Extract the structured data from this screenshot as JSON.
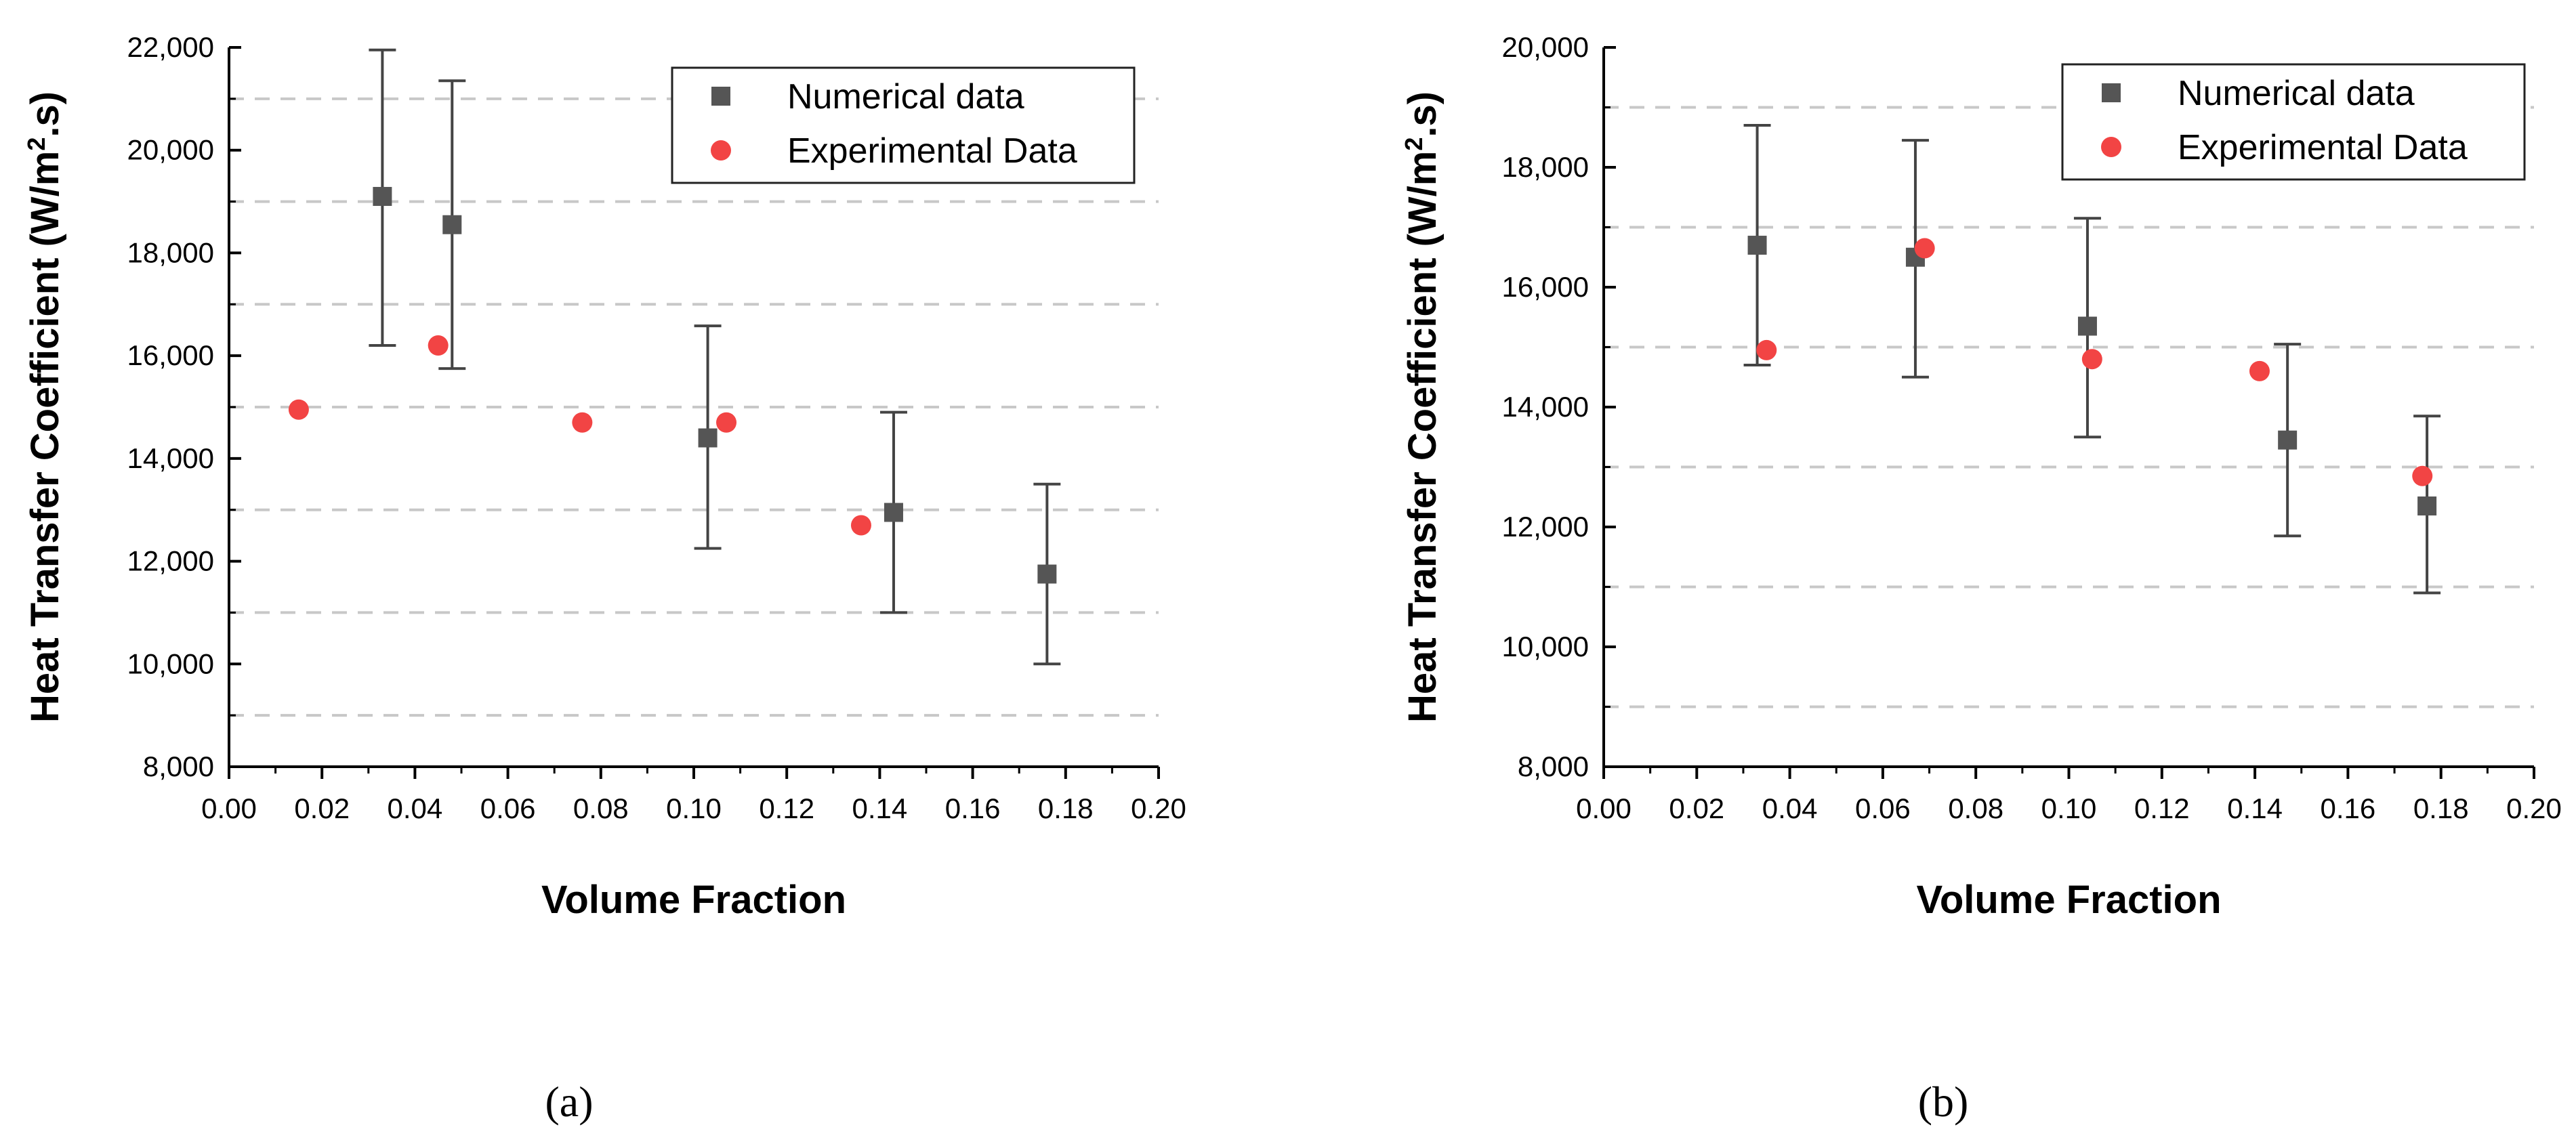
{
  "colors": {
    "numerical": "#555555",
    "experimental": "#f24444",
    "grid": "#c8c8c8",
    "axis": "#000000"
  },
  "chart_data": [
    {
      "type": "scatter",
      "panel_label": "(a)",
      "xlabel": "Volume Fraction",
      "ylabel_main": "Heat Transfer Coefficient (W/m",
      "ylabel_sup": "2",
      "ylabel_tail": ".s)",
      "xlim": [
        0,
        0.2
      ],
      "ylim": [
        8000,
        22000
      ],
      "xticks": [
        0.0,
        0.02,
        0.04,
        0.06,
        0.08,
        0.1,
        0.12,
        0.14,
        0.16,
        0.18,
        0.2
      ],
      "xtick_labels": [
        "0.00",
        "0.02",
        "0.04",
        "0.06",
        "0.08",
        "0.10",
        "0.12",
        "0.14",
        "0.16",
        "0.18",
        "0.20"
      ],
      "yticks": [
        8000,
        10000,
        12000,
        14000,
        16000,
        18000,
        20000,
        22000
      ],
      "ytick_labels": [
        "8,000",
        "10,000",
        "12,000",
        "14,000",
        "16,000",
        "18,000",
        "20,000",
        "22,000"
      ],
      "grid_y": [
        9000,
        11000,
        13000,
        15000,
        17000,
        19000,
        21000
      ],
      "legend": {
        "position": "top-right",
        "entries": [
          "Numerical data",
          "Experimental Data"
        ]
      },
      "series": [
        {
          "name": "Numerical data",
          "marker": "square",
          "x": [
            0.033,
            0.048,
            0.103,
            0.143,
            0.176
          ],
          "y": [
            19100,
            18550,
            14400,
            12950,
            11750
          ],
          "err_low": [
            16200,
            15750,
            12250,
            11000,
            10000
          ],
          "err_high": [
            21950,
            21350,
            16580,
            14900,
            13500
          ]
        },
        {
          "name": "Experimental Data",
          "marker": "circle",
          "x": [
            0.015,
            0.045,
            0.076,
            0.107,
            0.136
          ],
          "y": [
            14950,
            16200,
            14700,
            14700,
            12700
          ]
        }
      ]
    },
    {
      "type": "scatter",
      "panel_label": "(b)",
      "xlabel": "Volume Fraction",
      "ylabel_main": "Heat Transfer Coefficient (W/m",
      "ylabel_sup": "2",
      "ylabel_tail": ".s)",
      "xlim": [
        0,
        0.2
      ],
      "ylim": [
        8000,
        20000
      ],
      "xticks": [
        0.0,
        0.02,
        0.04,
        0.06,
        0.08,
        0.1,
        0.12,
        0.14,
        0.16,
        0.18,
        0.2
      ],
      "xtick_labels": [
        "0.00",
        "0.02",
        "0.04",
        "0.06",
        "0.08",
        "0.10",
        "0.12",
        "0.14",
        "0.16",
        "0.18",
        "0.20"
      ],
      "yticks": [
        8000,
        10000,
        12000,
        14000,
        16000,
        18000,
        20000
      ],
      "ytick_labels": [
        "8,000",
        "10,000",
        "12,000",
        "14,000",
        "16,000",
        "18,000",
        "20,000"
      ],
      "grid_y": [
        9000,
        11000,
        13000,
        15000,
        17000,
        19000
      ],
      "legend": {
        "position": "top-right",
        "entries": [
          "Numerical data",
          "Experimental Data"
        ]
      },
      "series": [
        {
          "name": "Numerical data",
          "marker": "square",
          "x": [
            0.033,
            0.067,
            0.104,
            0.147,
            0.177
          ],
          "y": [
            16700,
            16500,
            15350,
            13450,
            12350
          ],
          "err_low": [
            14700,
            14500,
            13500,
            11850,
            10900
          ],
          "err_high": [
            18700,
            18450,
            17150,
            15050,
            13850
          ]
        },
        {
          "name": "Experimental Data",
          "marker": "circle",
          "x": [
            0.035,
            0.069,
            0.105,
            0.141,
            0.176
          ],
          "y": [
            14950,
            16650,
            14800,
            14600,
            12850
          ]
        }
      ]
    }
  ]
}
